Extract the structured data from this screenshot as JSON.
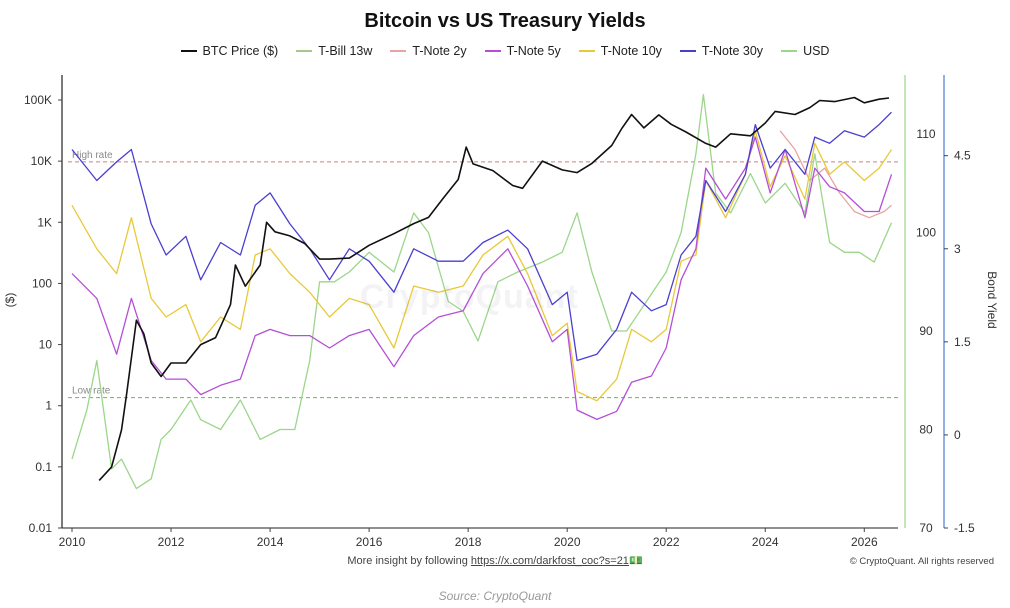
{
  "chart_data": {
    "type": "line",
    "title": "Bitcoin vs US Treasury Yields",
    "ylabel_left": "($)",
    "ylabel_right": "Bond Yield",
    "x_ticks": [
      "2010",
      "2012",
      "2014",
      "2016",
      "2018",
      "2020",
      "2022",
      "2024",
      "2026"
    ],
    "x_range": [
      2010,
      2026.6
    ],
    "y_left_scale": "log",
    "y_left_ticks": [
      "0.01",
      "0.1",
      "1",
      "10",
      "100",
      "1K",
      "10K",
      "100K"
    ],
    "y_left_range": [
      0.01,
      100000
    ],
    "y_mid_ticks": [
      "70",
      "80",
      "90",
      "100",
      "110"
    ],
    "y_mid_range": [
      70,
      116
    ],
    "y_right_ticks": [
      "-1.5",
      "0",
      "1.5",
      "3",
      "4.5"
    ],
    "y_right_range": [
      -1.5,
      5.8
    ],
    "grid": false,
    "legend_position": "top-center",
    "reference_lines": [
      {
        "label": "High rate",
        "y_right": 4.4,
        "color": "#d08080"
      },
      {
        "label": "Low rate",
        "y_right": 0.6,
        "color": "#66bb55"
      }
    ],
    "series": [
      {
        "name": "BTC Price ($)",
        "axis": "left",
        "color": "#111111",
        "x": [
          2010.55,
          2010.8,
          2011.0,
          2011.1,
          2011.3,
          2011.45,
          2011.6,
          2011.8,
          2012.0,
          2012.3,
          2012.6,
          2012.9,
          2013.2,
          2013.3,
          2013.5,
          2013.8,
          2013.93,
          2014.1,
          2014.4,
          2014.7,
          2015.0,
          2015.2,
          2015.6,
          2016.0,
          2016.5,
          2016.9,
          2017.2,
          2017.5,
          2017.8,
          2017.96,
          2018.1,
          2018.5,
          2018.9,
          2019.1,
          2019.5,
          2019.9,
          2020.2,
          2020.5,
          2020.9,
          2021.1,
          2021.3,
          2021.55,
          2021.85,
          2022.1,
          2022.4,
          2022.8,
          2023.0,
          2023.3,
          2023.7,
          2024.0,
          2024.2,
          2024.6,
          2024.9,
          2025.1,
          2025.4,
          2025.8,
          2026.0,
          2026.3,
          2026.5
        ],
        "values": [
          0.06,
          0.1,
          0.4,
          1.5,
          25,
          15,
          5,
          3,
          5,
          5,
          10,
          13,
          45,
          200,
          90,
          200,
          1000,
          700,
          600,
          450,
          250,
          250,
          260,
          420,
          650,
          950,
          1200,
          2500,
          5000,
          17000,
          9000,
          7000,
          4000,
          3600,
          10000,
          7200,
          6500,
          9200,
          18000,
          34000,
          58000,
          35000,
          57000,
          40000,
          30000,
          19500,
          17000,
          28000,
          26000,
          42000,
          65000,
          58000,
          75000,
          98000,
          94000,
          110000,
          90000,
          103000,
          108000
        ]
      },
      {
        "name": "T-Bill 13w",
        "axis": "right",
        "color": "#a6c98a",
        "x": [],
        "values": []
      },
      {
        "name": "T-Note 2y",
        "axis": "right",
        "color": "#e8a3a3",
        "x": [
          2024.3,
          2024.6,
          2024.9,
          2025.2,
          2025.5,
          2025.8,
          2026.1,
          2026.4,
          2026.55
        ],
        "values": [
          4.9,
          4.6,
          4.1,
          4.3,
          3.9,
          3.6,
          3.5,
          3.6,
          3.7
        ]
      },
      {
        "name": "T-Note 5y",
        "axis": "right",
        "color": "#b44fd6",
        "x": [
          2010.0,
          2010.5,
          2010.9,
          2011.2,
          2011.6,
          2011.9,
          2012.3,
          2012.6,
          2013.0,
          2013.4,
          2013.7,
          2014.0,
          2014.4,
          2014.8,
          2015.2,
          2015.6,
          2016.0,
          2016.5,
          2016.9,
          2017.4,
          2017.9,
          2018.3,
          2018.8,
          2019.2,
          2019.7,
          2020.0,
          2020.2,
          2020.6,
          2021.0,
          2021.3,
          2021.7,
          2022.0,
          2022.3,
          2022.6,
          2022.8,
          2023.2,
          2023.6,
          2023.8,
          2024.1,
          2024.4,
          2024.8,
          2025.0,
          2025.3,
          2025.6,
          2026.0,
          2026.3,
          2026.55
        ],
        "values": [
          2.6,
          2.2,
          1.3,
          2.2,
          1.2,
          0.9,
          0.9,
          0.65,
          0.8,
          0.9,
          1.6,
          1.7,
          1.6,
          1.6,
          1.4,
          1.6,
          1.7,
          1.1,
          1.6,
          1.9,
          2.0,
          2.6,
          3.0,
          2.4,
          1.5,
          1.7,
          0.4,
          0.25,
          0.38,
          0.85,
          0.95,
          1.4,
          2.5,
          3.0,
          4.3,
          3.8,
          4.3,
          4.8,
          3.9,
          4.6,
          3.5,
          4.3,
          4.0,
          3.9,
          3.6,
          3.6,
          4.2
        ]
      },
      {
        "name": "T-Note 10y",
        "axis": "right",
        "color": "#e8c93a",
        "x": [
          2010.0,
          2010.5,
          2010.9,
          2011.2,
          2011.6,
          2011.9,
          2012.3,
          2012.6,
          2013.0,
          2013.4,
          2013.7,
          2014.0,
          2014.4,
          2014.8,
          2015.2,
          2015.6,
          2016.0,
          2016.5,
          2016.9,
          2017.4,
          2017.9,
          2018.3,
          2018.8,
          2019.2,
          2019.7,
          2020.0,
          2020.2,
          2020.6,
          2021.0,
          2021.3,
          2021.7,
          2022.0,
          2022.3,
          2022.6,
          2022.8,
          2023.2,
          2023.6,
          2023.8,
          2024.1,
          2024.4,
          2024.8,
          2025.0,
          2025.3,
          2025.6,
          2026.0,
          2026.3,
          2026.55
        ],
        "values": [
          3.7,
          3.0,
          2.6,
          3.5,
          2.2,
          1.9,
          2.1,
          1.5,
          1.9,
          1.7,
          2.9,
          3.0,
          2.6,
          2.3,
          1.9,
          2.2,
          2.1,
          1.4,
          2.4,
          2.3,
          2.4,
          2.9,
          3.2,
          2.6,
          1.6,
          1.8,
          0.7,
          0.55,
          0.9,
          1.7,
          1.5,
          1.7,
          2.8,
          2.9,
          4.1,
          3.5,
          4.2,
          4.9,
          4.0,
          4.5,
          3.8,
          4.7,
          4.2,
          4.4,
          4.1,
          4.3,
          4.6
        ]
      },
      {
        "name": "T-Note 30y",
        "axis": "right",
        "color": "#4a3fcf",
        "x": [
          2010.0,
          2010.5,
          2010.9,
          2011.2,
          2011.6,
          2011.9,
          2012.3,
          2012.6,
          2013.0,
          2013.4,
          2013.7,
          2014.0,
          2014.4,
          2014.8,
          2015.2,
          2015.6,
          2016.0,
          2016.5,
          2016.9,
          2017.4,
          2017.9,
          2018.3,
          2018.8,
          2019.2,
          2019.7,
          2020.0,
          2020.2,
          2020.6,
          2021.0,
          2021.3,
          2021.7,
          2022.0,
          2022.3,
          2022.6,
          2022.8,
          2023.2,
          2023.6,
          2023.8,
          2024.1,
          2024.4,
          2024.8,
          2025.0,
          2025.3,
          2025.6,
          2026.0,
          2026.3,
          2026.55
        ],
        "values": [
          4.6,
          4.1,
          4.4,
          4.6,
          3.4,
          2.9,
          3.2,
          2.5,
          3.1,
          2.9,
          3.7,
          3.9,
          3.4,
          3.0,
          2.5,
          3.0,
          2.8,
          2.3,
          3.0,
          2.8,
          2.8,
          3.1,
          3.3,
          3.0,
          2.1,
          2.3,
          1.2,
          1.3,
          1.7,
          2.3,
          2.0,
          2.1,
          2.9,
          3.2,
          4.1,
          3.6,
          4.2,
          5.0,
          4.3,
          4.6,
          4.2,
          4.8,
          4.7,
          4.9,
          4.8,
          5.0,
          5.2
        ]
      },
      {
        "name": "USD",
        "axis": "mid",
        "color": "#9bd68a",
        "x": [
          2010.0,
          2010.3,
          2010.5,
          2010.8,
          2011.0,
          2011.3,
          2011.6,
          2011.8,
          2012.0,
          2012.4,
          2012.6,
          2013.0,
          2013.4,
          2013.8,
          2014.2,
          2014.5,
          2014.8,
          2015.0,
          2015.3,
          2015.6,
          2016.0,
          2016.5,
          2016.9,
          2017.2,
          2017.6,
          2017.9,
          2018.2,
          2018.6,
          2019.0,
          2019.5,
          2019.9,
          2020.2,
          2020.5,
          2020.9,
          2021.2,
          2021.6,
          2022.0,
          2022.3,
          2022.6,
          2022.75,
          2023.0,
          2023.3,
          2023.7,
          2024.0,
          2024.4,
          2024.8,
          2025.0,
          2025.3,
          2025.6,
          2025.9,
          2026.2,
          2026.55
        ],
        "values": [
          77,
          82,
          87,
          76,
          77,
          74,
          75,
          79,
          80,
          83,
          81,
          80,
          83,
          79,
          80,
          80,
          87,
          95,
          95,
          96,
          98,
          96,
          102,
          100,
          93,
          92,
          89,
          95,
          96,
          97,
          98,
          102,
          96,
          90,
          90,
          93,
          96,
          100,
          108,
          114,
          104,
          102,
          106,
          103,
          105,
          102,
          108,
          99,
          98,
          98,
          97,
          101
        ]
      }
    ]
  },
  "footer": {
    "insight_prefix": "More insight by following",
    "link_text": "https://x.com/darkfost_coc?s=21",
    "emoji": "💵",
    "copyright": "© CryptoQuant. All rights reserved",
    "watermark": "CryptoQuant"
  },
  "source": "Source: CryptoQuant"
}
